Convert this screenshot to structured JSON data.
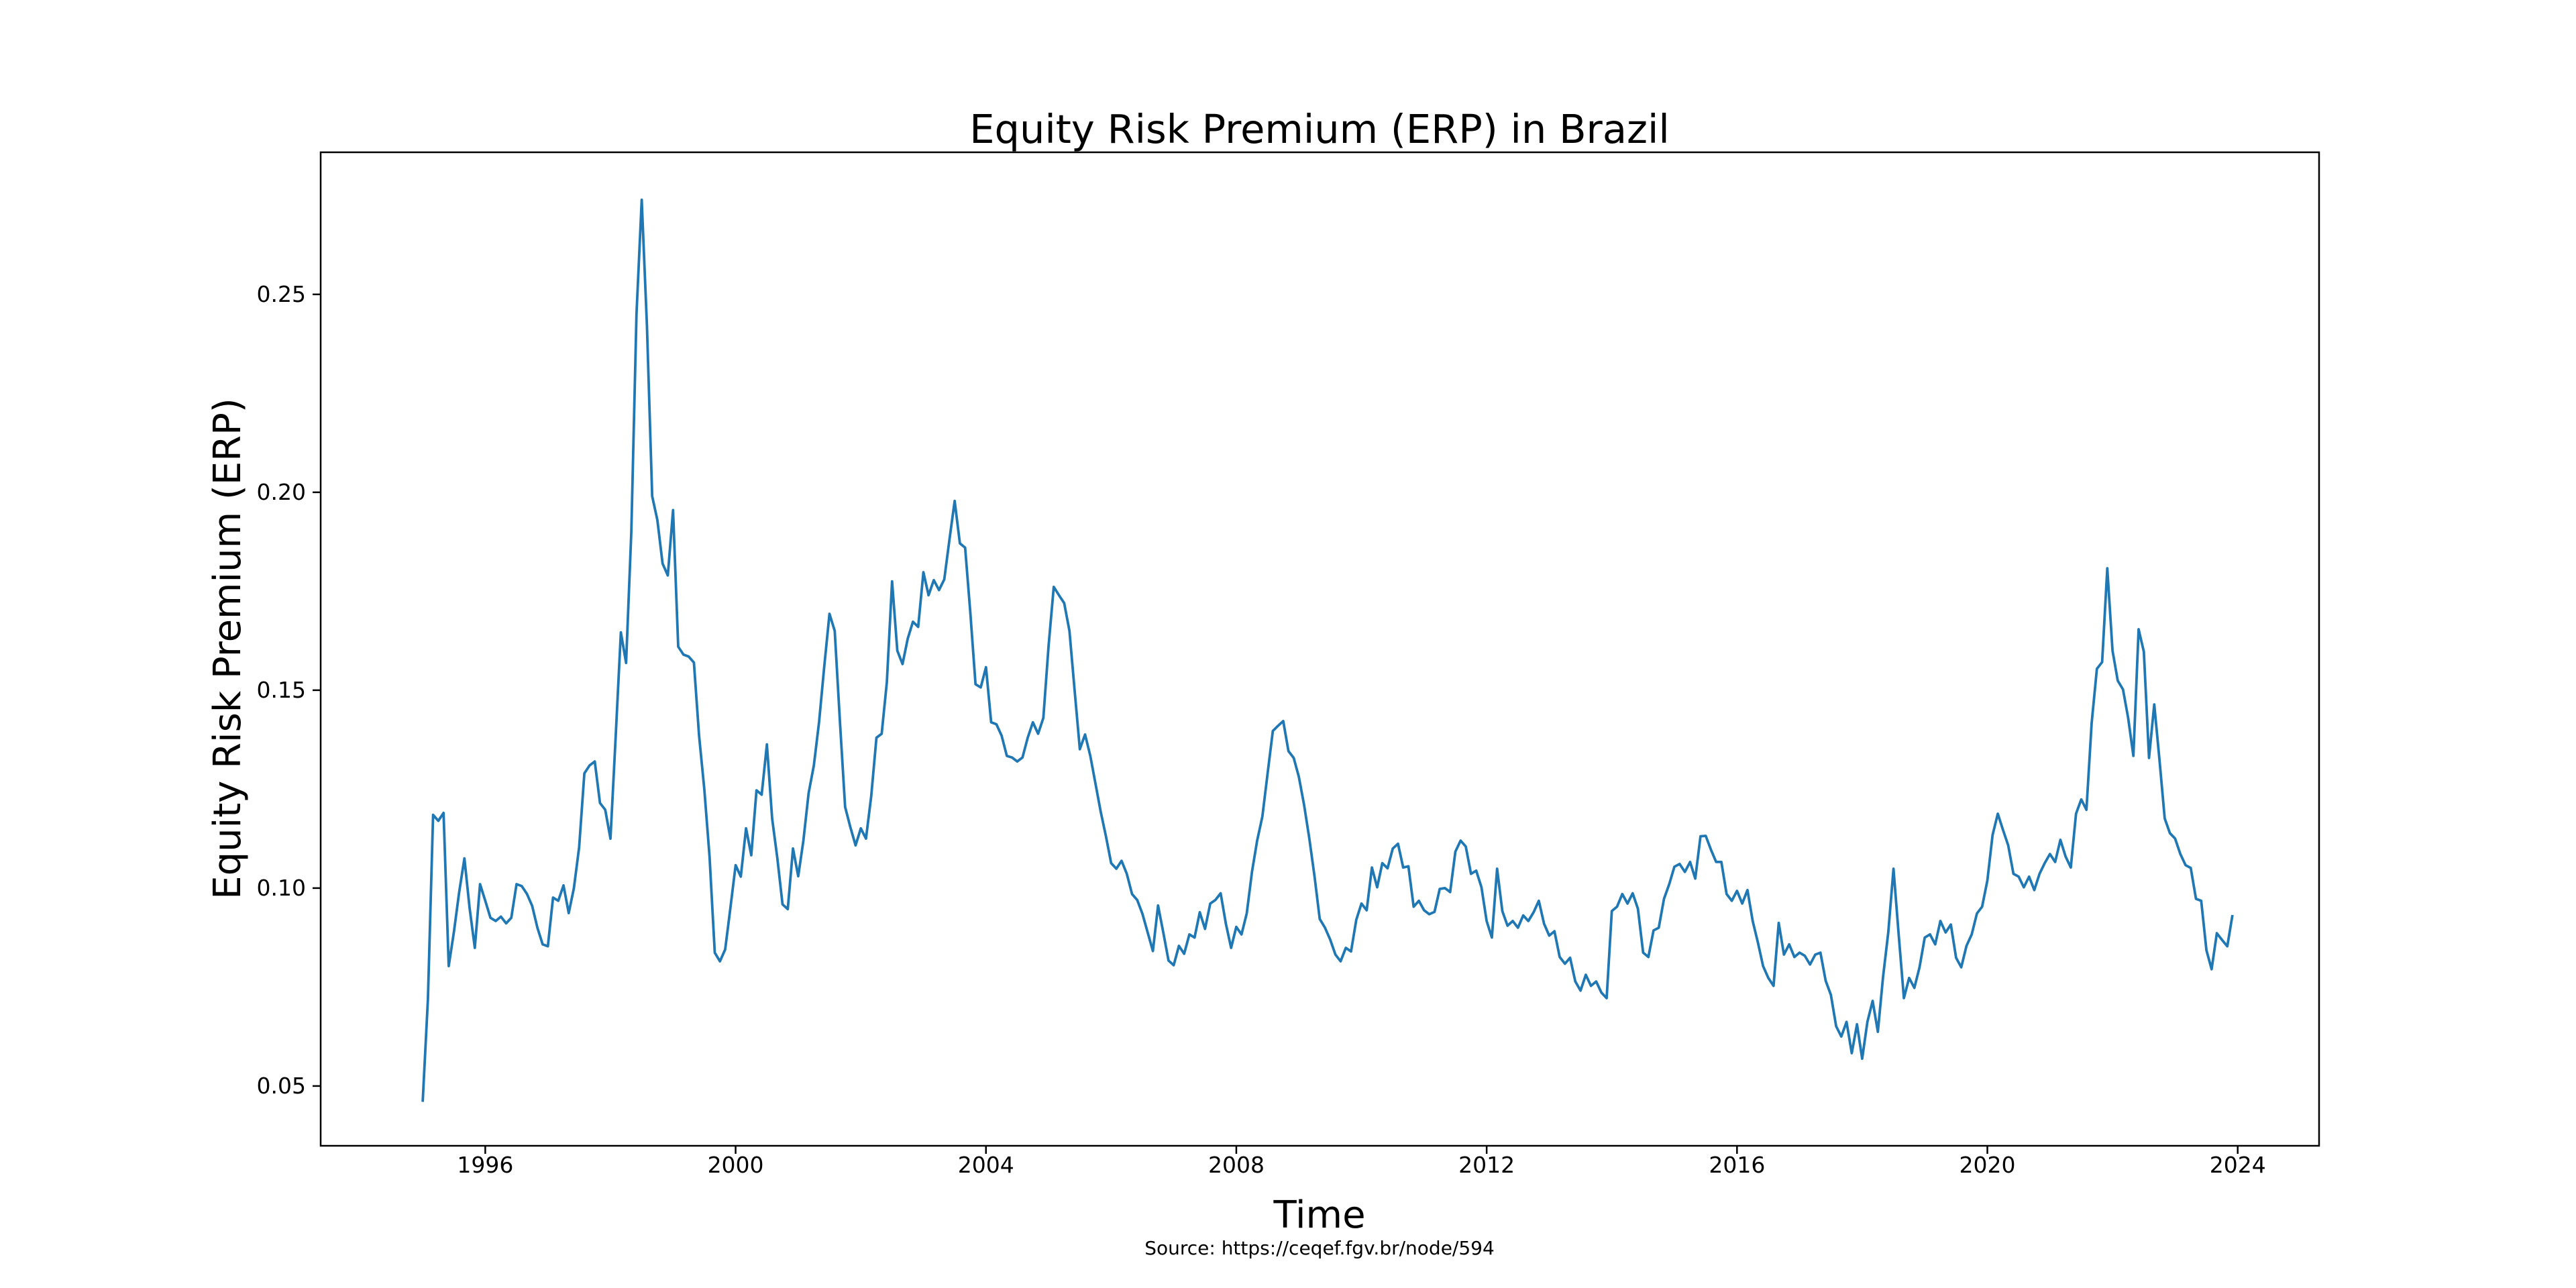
{
  "chart_data": {
    "type": "line",
    "title": "Equity Risk Premium (ERP) in Brazil",
    "xlabel": "Time",
    "ylabel": "Equity Risk Premium (ERP)",
    "source_note": "Source: https://ceqef.fgv.br/node/594",
    "line_color": "#1f77b4",
    "background_color": "#ffffff",
    "grid": false,
    "legend_position": null,
    "x_ticks": [
      1996,
      2000,
      2004,
      2008,
      2012,
      2016,
      2020,
      2024
    ],
    "y_ticks": [
      0.05,
      0.1,
      0.15,
      0.2,
      0.25
    ],
    "xlim_years": [
      1993.37,
      2025.3
    ],
    "ylim": [
      0.0349,
      0.2859
    ],
    "series": [
      {
        "name": "Equity Risk Premium (ERP), monthly",
        "frequency": "monthly",
        "start_year": 1995,
        "start_month": 1,
        "end_year": 2023,
        "end_month": 12,
        "values": [
          0.046,
          0.072,
          0.1185,
          0.117,
          0.119,
          0.0803,
          0.089,
          0.099,
          0.1075,
          0.095,
          0.0849,
          0.101,
          0.0968,
          0.0925,
          0.0917,
          0.0928,
          0.0911,
          0.0925,
          0.101,
          0.1005,
          0.0985,
          0.0955,
          0.09,
          0.0858,
          0.0853,
          0.0976,
          0.0968,
          0.1007,
          0.0937,
          0.1,
          0.1103,
          0.129,
          0.131,
          0.132,
          0.1215,
          0.1198,
          0.1125,
          0.138,
          0.1646,
          0.1569,
          0.19,
          0.245,
          0.2739,
          0.242,
          0.199,
          0.193,
          0.182,
          0.179,
          0.1955,
          0.161,
          0.159,
          0.1585,
          0.157,
          0.1385,
          0.125,
          0.108,
          0.0837,
          0.0815,
          0.0845,
          0.095,
          0.1058,
          0.1029,
          0.1151,
          0.1083,
          0.1247,
          0.1236,
          0.1363,
          0.1176,
          0.1075,
          0.0959,
          0.0947,
          0.11,
          0.103,
          0.112,
          0.124,
          0.131,
          0.142,
          0.156,
          0.1693,
          0.165,
          0.142,
          0.1205,
          0.1154,
          0.1108,
          0.1151,
          0.1125,
          0.1232,
          0.138,
          0.139,
          0.152,
          0.1775,
          0.16,
          0.1566,
          0.163,
          0.1673,
          0.166,
          0.1798,
          0.174,
          0.1778,
          0.1753,
          0.178,
          0.188,
          0.1978,
          0.1871,
          0.186,
          0.1697,
          0.1515,
          0.1507,
          0.1558,
          0.1419,
          0.1414,
          0.1385,
          0.1334,
          0.133,
          0.132,
          0.133,
          0.138,
          0.1419,
          0.139,
          0.143,
          0.1612,
          0.1761,
          0.174,
          0.172,
          0.165,
          0.15,
          0.1351,
          0.1388,
          0.1334,
          0.1264,
          0.1193,
          0.1131,
          0.1063,
          0.1049,
          0.1069,
          0.1036,
          0.0985,
          0.097,
          0.0935,
          0.0888,
          0.0841,
          0.0956,
          0.0888,
          0.0817,
          0.0805,
          0.0854,
          0.0834,
          0.0883,
          0.0875,
          0.0939,
          0.0897,
          0.0961,
          0.097,
          0.0987,
          0.091,
          0.0849,
          0.0902,
          0.0883,
          0.0936,
          0.1041,
          0.112,
          0.1181,
          0.129,
          0.1397,
          0.141,
          0.1422,
          0.1346,
          0.1329,
          0.1281,
          0.121,
          0.1125,
          0.1029,
          0.0922,
          0.09,
          0.087,
          0.0832,
          0.0815,
          0.0849,
          0.084,
          0.092,
          0.0961,
          0.0944,
          0.1052,
          0.1002,
          0.1063,
          0.105,
          0.11,
          0.1112,
          0.1052,
          0.1055,
          0.0953,
          0.0968,
          0.0944,
          0.0934,
          0.094,
          0.0998,
          0.1,
          0.099,
          0.1092,
          0.112,
          0.1105,
          0.1036,
          0.1044,
          0.1002,
          0.0917,
          0.0875,
          0.1049,
          0.0942,
          0.0905,
          0.0917,
          0.09,
          0.0931,
          0.0917,
          0.0939,
          0.0968,
          0.091,
          0.088,
          0.0891,
          0.0826,
          0.0809,
          0.0824,
          0.0764,
          0.0741,
          0.0781,
          0.0753,
          0.0764,
          0.0736,
          0.0722,
          0.0942,
          0.0953,
          0.0985,
          0.0961,
          0.0987,
          0.0948,
          0.0837,
          0.0826,
          0.0893,
          0.09,
          0.0973,
          0.101,
          0.1054,
          0.1061,
          0.1041,
          0.1066,
          0.1024,
          0.1131,
          0.1132,
          0.1097,
          0.1066,
          0.1066,
          0.0985,
          0.0968,
          0.0993,
          0.0961,
          0.0995,
          0.0917,
          0.0863,
          0.0803,
          0.0773,
          0.0753,
          0.0912,
          0.0832,
          0.0858,
          0.0826,
          0.0837,
          0.0829,
          0.0807,
          0.0832,
          0.0837,
          0.0766,
          0.073,
          0.0651,
          0.0625,
          0.0662,
          0.0583,
          0.0656,
          0.0569,
          0.0662,
          0.0715,
          0.0637,
          0.0775,
          0.0888,
          0.1049,
          0.0883,
          0.0722,
          0.0773,
          0.0748,
          0.08,
          0.0875,
          0.0883,
          0.0858,
          0.0917,
          0.0888,
          0.0908,
          0.0824,
          0.08,
          0.0854,
          0.0883,
          0.0936,
          0.0953,
          0.1019,
          0.1134,
          0.1188,
          0.1147,
          0.1108,
          0.1036,
          0.1029,
          0.1002,
          0.1029,
          0.0995,
          0.1036,
          0.1063,
          0.1086,
          0.1066,
          0.1122,
          0.108,
          0.1052,
          0.1188,
          0.1224,
          0.1198,
          0.1417,
          0.1554,
          0.1571,
          0.1808,
          0.16,
          0.1524,
          0.1502,
          0.143,
          0.1334,
          0.1654,
          0.1597,
          0.1329,
          0.1464,
          0.1324,
          0.1176,
          0.1139,
          0.1125,
          0.1086,
          0.1058,
          0.1051,
          0.0973,
          0.0968,
          0.0843,
          0.0795,
          0.0886,
          0.0869,
          0.0853,
          0.0932
        ]
      }
    ]
  }
}
